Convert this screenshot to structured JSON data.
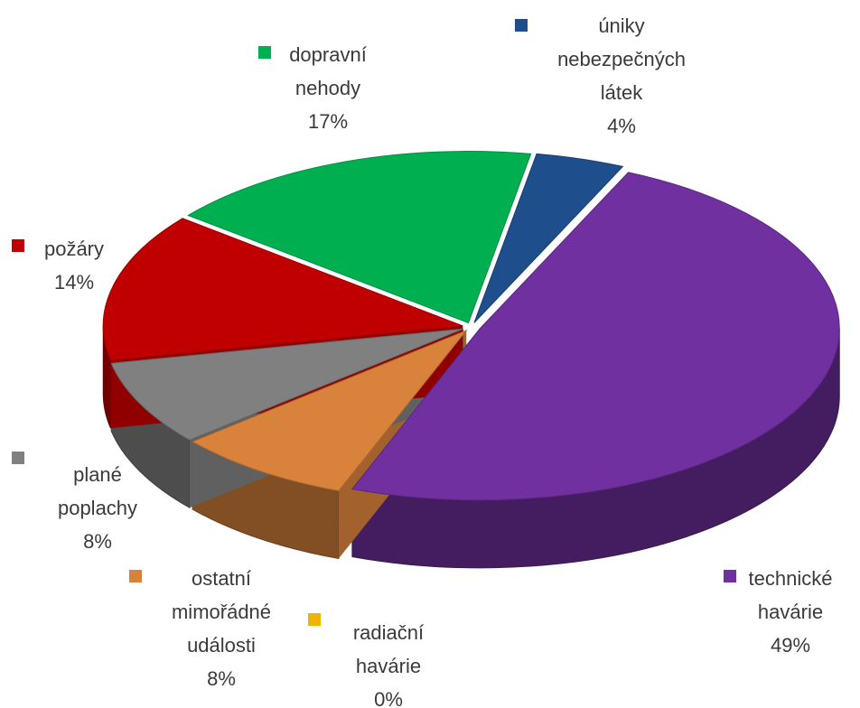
{
  "chart_data": {
    "type": "pie",
    "categories": [
      "úniky nebezpečných látek",
      "technické havárie",
      "radiační havárie",
      "ostatní mimořádné události",
      "plané poplachy",
      "požáry",
      "dopravní nehody"
    ],
    "values": [
      4,
      49,
      0,
      8,
      8,
      14,
      17
    ],
    "value_labels": [
      "4%",
      "49%",
      "0%",
      "8%",
      "8%",
      "14%",
      "17%"
    ],
    "colors": [
      "#1f4e8c",
      "#7030a0",
      "#f0b400",
      "#d9823c",
      "#808080",
      "#c00000",
      "#00b050"
    ]
  }
}
